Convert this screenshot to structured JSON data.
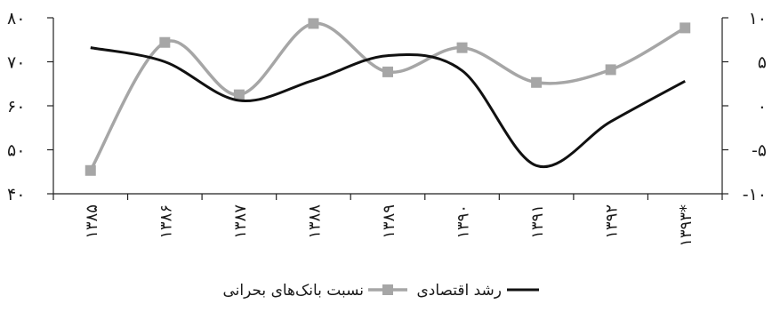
{
  "chart_data": {
    "type": "line",
    "categories": [
      "۱۳۸۵",
      "۱۳۸۶",
      "۱۳۸۷",
      "۱۳۸۸",
      "۱۳۸۹",
      "۱۳۹۰",
      "۱۳۹۱",
      "۱۳۹۲",
      "۱۳۹۳*"
    ],
    "left_axis": {
      "ticks": [
        40,
        50,
        60,
        70,
        80
      ],
      "tick_labels": [
        "۴۰",
        "۵۰",
        "۶۰",
        "۷۰",
        "۸۰"
      ],
      "range": [
        40,
        80
      ]
    },
    "right_axis": {
      "ticks": [
        -10,
        -5,
        0,
        5,
        10
      ],
      "tick_labels": [
        "-۱۰",
        "-۵",
        "۰",
        "۵",
        "۱۰"
      ],
      "range": [
        -10,
        10
      ]
    },
    "series": [
      {
        "name": "نسبت بانک‌های بحرانی",
        "axis": "left",
        "color": "#a6a6a6",
        "marker": "square",
        "values": [
          45.3,
          74.4,
          62.5,
          78.7,
          67.7,
          73.2,
          65.3,
          68.2,
          77.7
        ]
      },
      {
        "name": "رشد اقتصادی",
        "axis": "right",
        "color": "#111111",
        "marker": "none",
        "values": [
          6.6,
          5.0,
          0.6,
          2.9,
          5.7,
          4.0,
          -6.8,
          -1.8,
          2.8
        ]
      }
    ],
    "legend": {
      "position": "bottom",
      "items": [
        {
          "label": "رشد اقتصادی",
          "series": 1
        },
        {
          "label": "نسبت بانک‌های بحرانی",
          "series": 0
        }
      ]
    },
    "grid": false
  }
}
